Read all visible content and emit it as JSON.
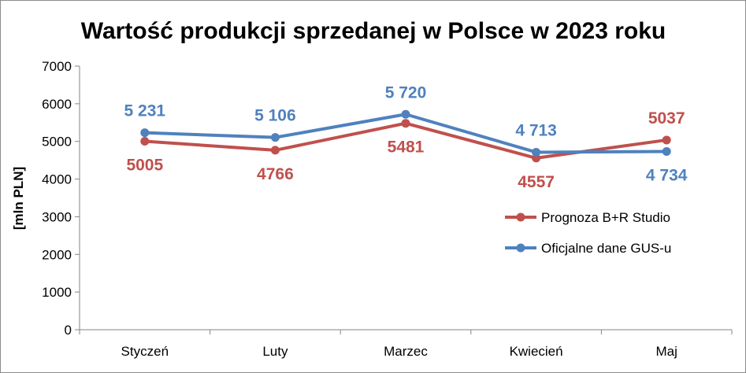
{
  "chart_data": {
    "type": "line",
    "title": "Wartość produkcji sprzedanej w Polsce w 2023 roku",
    "ylabel": "[mln PLN]",
    "xlabel": "",
    "ylim": [
      0,
      7000
    ],
    "yticks": [
      0,
      1000,
      2000,
      3000,
      4000,
      5000,
      6000,
      7000
    ],
    "ytick_labels": [
      "0",
      "1000",
      "2000",
      "3000",
      "4000",
      "5000",
      "6000",
      "7000"
    ],
    "categories": [
      "Styczeń",
      "Luty",
      "Marzec",
      "Kwiecień",
      "Maj"
    ],
    "grid": false,
    "legend_position": "right",
    "series": [
      {
        "name": "Prognoza B+R Studio",
        "color": "#c0504d",
        "values": [
          5005,
          4766,
          5481,
          4557,
          5037
        ],
        "labels": [
          "5005",
          "4766",
          "5481",
          "4557",
          "5037"
        ],
        "label_positions": [
          "below",
          "below",
          "below",
          "below",
          "above"
        ]
      },
      {
        "name": "Oficjalne dane GUS-u",
        "color": "#4f81bd",
        "values": [
          5231,
          5106,
          5720,
          4713,
          4734
        ],
        "labels": [
          "5 231",
          "5 106",
          "5 720",
          "4 713",
          "4 734"
        ],
        "label_positions": [
          "above",
          "above",
          "above",
          "above",
          "below"
        ]
      }
    ]
  }
}
